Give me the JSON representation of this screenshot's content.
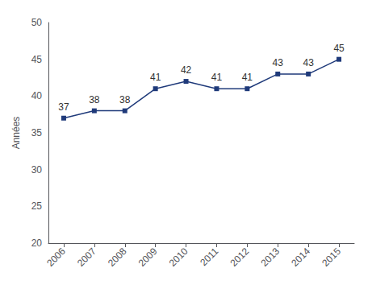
{
  "chart_data": {
    "type": "line",
    "x": [
      2006,
      2007,
      2008,
      2009,
      2010,
      2011,
      2012,
      2013,
      2014,
      2015
    ],
    "values": [
      37,
      38,
      38,
      41,
      42,
      41,
      41,
      43,
      43,
      45
    ],
    "color": "#1F3A7A",
    "marker": "square",
    "ylabel": "Années",
    "xlim": [
      2005.5,
      2015.5
    ],
    "xticks": [
      2006,
      2007,
      2008,
      2009,
      2010,
      2011,
      2012,
      2013,
      2014,
      2015
    ],
    "ylim": [
      20,
      50
    ],
    "yticks": [
      20,
      25,
      30,
      35,
      40,
      45,
      50
    ],
    "grid": false,
    "data_labels": true
  }
}
